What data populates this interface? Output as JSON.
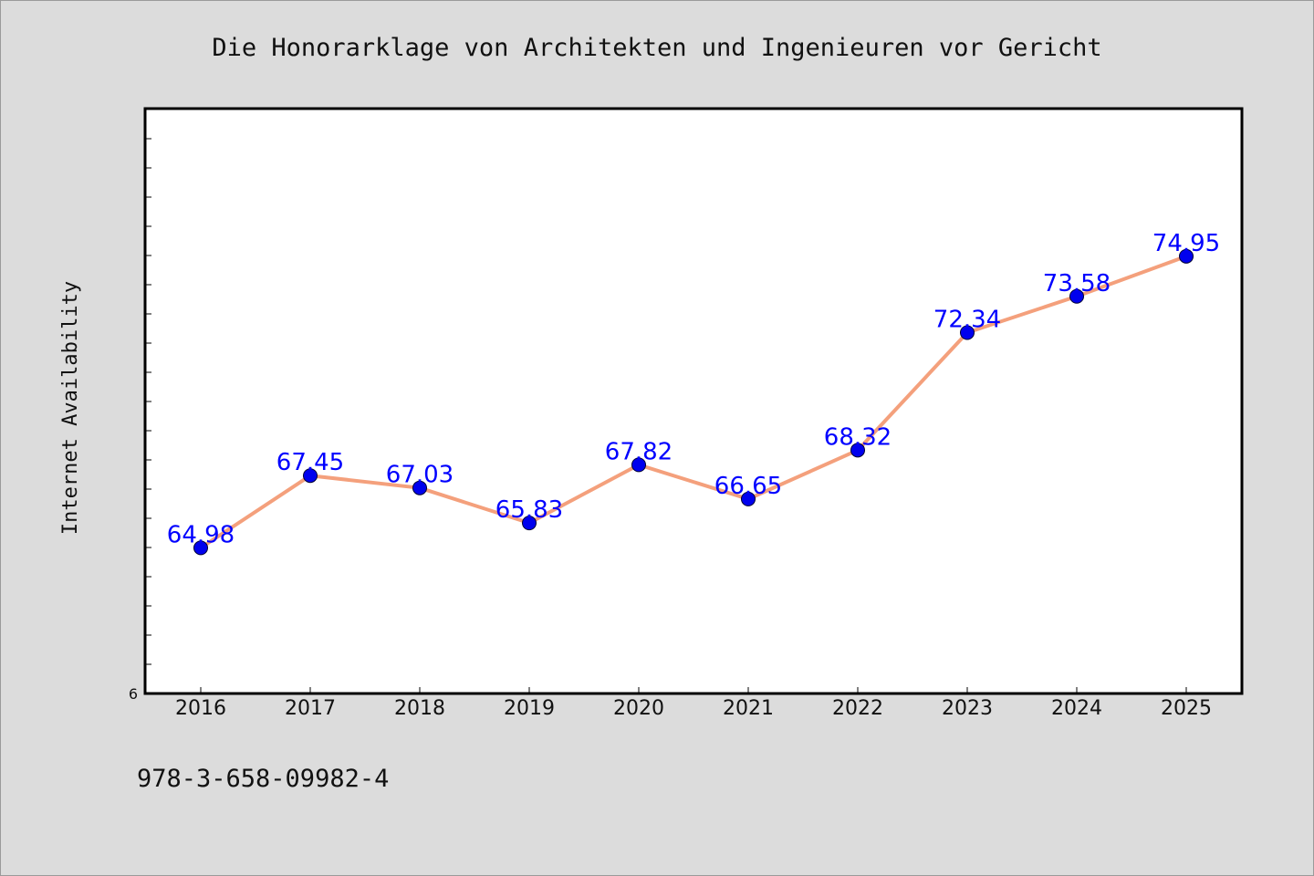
{
  "chart_data": {
    "type": "line",
    "title": "Die Honorarklage von Architekten und Ingenieuren vor Gericht",
    "xlabel": "",
    "ylabel": "Internet Availability",
    "categories": [
      "2016",
      "2017",
      "2018",
      "2019",
      "2020",
      "2021",
      "2022",
      "2023",
      "2024",
      "2025"
    ],
    "series": [
      {
        "values": [
          64.98,
          67.45,
          67.03,
          65.83,
          67.82,
          66.65,
          68.32,
          72.34,
          73.58,
          74.95
        ],
        "data_labels": [
          "64.98",
          "67.45",
          "67.03",
          "65.83",
          "67.82",
          "66.65",
          "68.32",
          "72.34",
          "73.58",
          "74.95"
        ]
      }
    ],
    "y_tick_labels": [
      "6"
    ],
    "ylim": [
      60,
      80
    ],
    "grid": false,
    "legend": "none",
    "colors": {
      "line": "#f4a07c",
      "marker": "#0000ee",
      "data_label": "#0000ff",
      "background": "#dcdcdc",
      "plot_background": "#ffffff"
    }
  },
  "footer": {
    "isbn": "978-3-658-09982-4"
  }
}
